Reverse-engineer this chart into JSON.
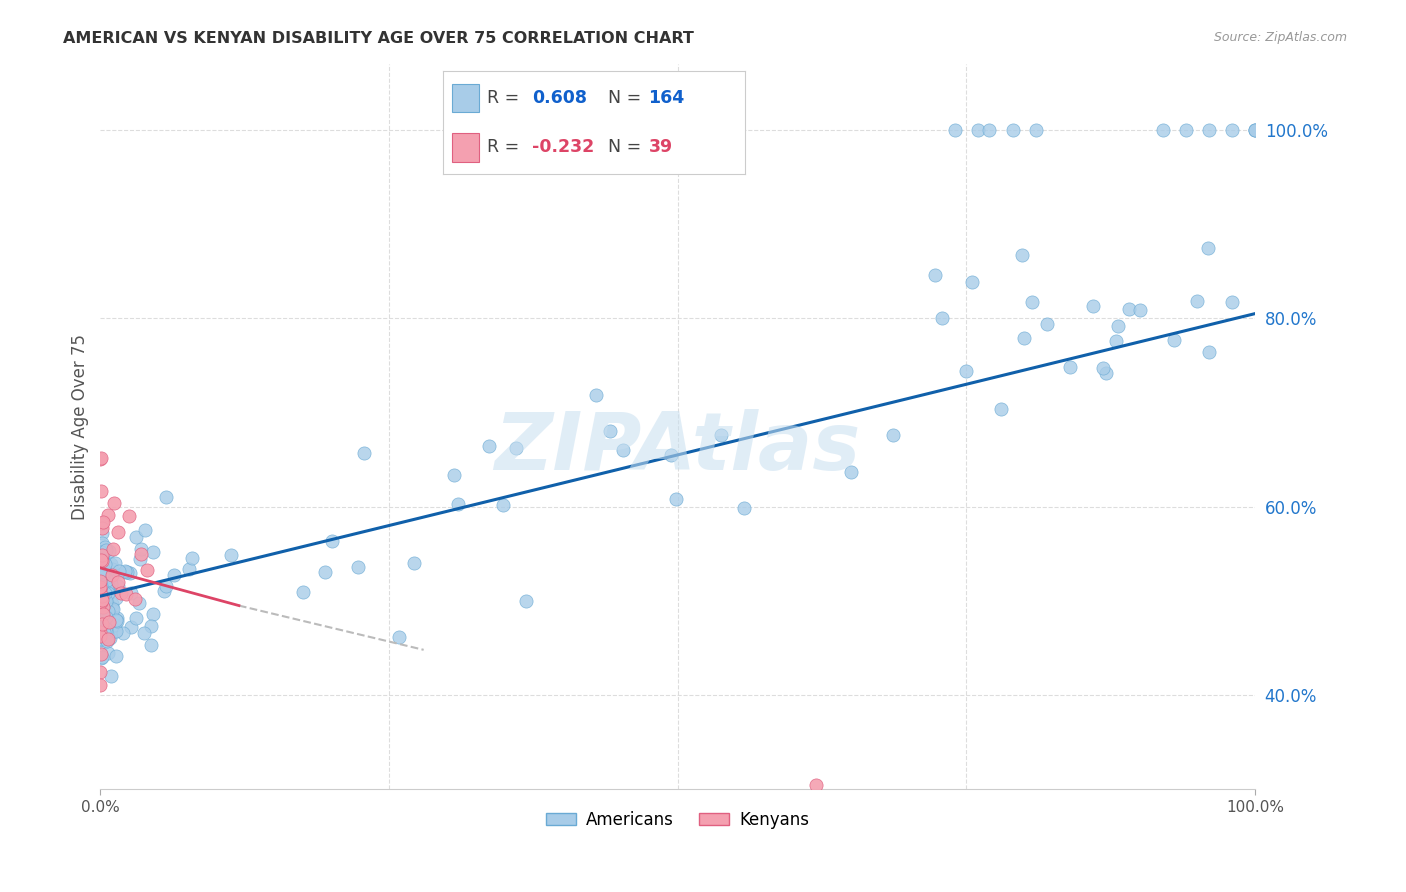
{
  "title": "AMERICAN VS KENYAN DISABILITY AGE OVER 75 CORRELATION CHART",
  "source": "Source: ZipAtlas.com",
  "ylabel": "Disability Age Over 75",
  "xlim": [
    0.0,
    1.0
  ],
  "ylim": [
    0.3,
    1.07
  ],
  "ytick_positions": [
    0.4,
    0.6,
    0.8,
    1.0
  ],
  "ytick_labels": [
    "40.0%",
    "60.0%",
    "80.0%",
    "100.0%"
  ],
  "american_color": "#a8cce8",
  "american_edge_color": "#6aaad4",
  "kenyan_color": "#f4a0b0",
  "kenyan_edge_color": "#e06080",
  "american_R": 0.608,
  "american_N": 164,
  "kenyan_R": -0.232,
  "kenyan_N": 39,
  "trend_blue_color": "#1060aa",
  "trend_pink_color": "#dd4466",
  "trend_gray_color": "#bbbbbb",
  "watermark": "ZIPAtlas",
  "background_color": "#ffffff",
  "grid_color": "#dddddd",
  "am_trend_x0": 0.0,
  "am_trend_y0": 0.505,
  "am_trend_x1": 1.0,
  "am_trend_y1": 0.805,
  "ke_trend_x0": 0.0,
  "ke_trend_y0": 0.535,
  "ke_trend_x1": 0.12,
  "ke_trend_y1": 0.495,
  "ke_trend_dash_x1": 0.28,
  "ke_trend_dash_y1": 0.448
}
